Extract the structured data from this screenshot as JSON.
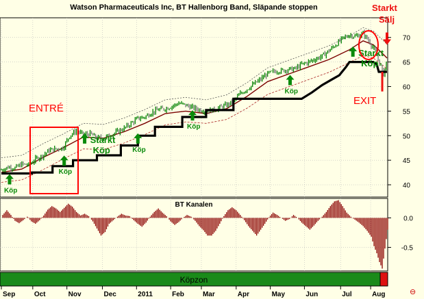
{
  "chart_data": [
    {
      "type": "line",
      "title": "Watson Pharmaceuticals Inc, BT Hallenborg Band, Släpande stoppen",
      "y_ticks": [
        40,
        45,
        50,
        55,
        60,
        65,
        70
      ],
      "ylim": [
        37.5,
        74
      ],
      "x_labels": [
        "Sep",
        "Oct",
        "Nov",
        "Dec",
        "2011",
        "Feb",
        "Mar",
        "Apr",
        "May",
        "Jun",
        "Jul",
        "Aug"
      ],
      "grid": true,
      "series_colors": {
        "price": "#008000",
        "band_mid": "#7a0000",
        "band_outer": "#555555",
        "trailing_stop": "#000000"
      },
      "price": [
        [
          0,
          43.0
        ],
        [
          10,
          43.6
        ],
        [
          20,
          43.4
        ],
        [
          30,
          44.2
        ],
        [
          40,
          44.0
        ],
        [
          50,
          45.2
        ],
        [
          60,
          45.9
        ],
        [
          70,
          47.0
        ],
        [
          80,
          47.3
        ],
        [
          90,
          47.5
        ],
        [
          100,
          50.0
        ],
        [
          110,
          51.0
        ],
        [
          120,
          50.2
        ],
        [
          130,
          50.4
        ],
        [
          140,
          49.5
        ],
        [
          150,
          49.6
        ],
        [
          160,
          50.1
        ],
        [
          170,
          50.8
        ],
        [
          180,
          51.5
        ],
        [
          190,
          52.5
        ],
        [
          200,
          53.5
        ],
        [
          210,
          53.8
        ],
        [
          220,
          54.7
        ],
        [
          230,
          55.3
        ],
        [
          240,
          55.5
        ],
        [
          250,
          56.0
        ],
        [
          260,
          56.6
        ],
        [
          270,
          56.2
        ],
        [
          280,
          55.7
        ],
        [
          290,
          55.3
        ],
        [
          300,
          55.0
        ],
        [
          310,
          55.2
        ],
        [
          320,
          55.7
        ],
        [
          330,
          56.2
        ],
        [
          340,
          57.0
        ],
        [
          350,
          58.5
        ],
        [
          360,
          59.5
        ],
        [
          370,
          60.5
        ],
        [
          380,
          61.5
        ],
        [
          390,
          62.6
        ],
        [
          400,
          63.1
        ],
        [
          410,
          63.2
        ],
        [
          420,
          63.5
        ],
        [
          430,
          63.6
        ],
        [
          440,
          64.5
        ],
        [
          450,
          65.0
        ],
        [
          460,
          65.6
        ],
        [
          470,
          66.2
        ],
        [
          480,
          67.3
        ],
        [
          490,
          68.5
        ],
        [
          500,
          69.8
        ],
        [
          510,
          70.5
        ],
        [
          520,
          70.2
        ],
        [
          530,
          70.8
        ],
        [
          540,
          69.0
        ],
        [
          548,
          67.0
        ],
        [
          555,
          64.5
        ],
        [
          560,
          62.5
        ],
        [
          565,
          65.5
        ]
      ],
      "band_mid": [
        [
          0,
          42.5
        ],
        [
          30,
          43.2
        ],
        [
          60,
          45.5
        ],
        [
          90,
          47.5
        ],
        [
          120,
          49.7
        ],
        [
          150,
          49.5
        ],
        [
          180,
          50.8
        ],
        [
          210,
          52.5
        ],
        [
          240,
          54.5
        ],
        [
          270,
          55.0
        ],
        [
          300,
          54.5
        ],
        [
          330,
          55.5
        ],
        [
          360,
          58.0
        ],
        [
          390,
          61.0
        ],
        [
          420,
          62.5
        ],
        [
          450,
          64.0
        ],
        [
          480,
          65.5
        ],
        [
          510,
          67.5
        ],
        [
          530,
          69.3
        ],
        [
          545,
          68.5
        ],
        [
          560,
          66.5
        ],
        [
          565,
          65.8
        ]
      ],
      "band_upper": [
        [
          0,
          45.5
        ],
        [
          30,
          46.0
        ],
        [
          60,
          48.3
        ],
        [
          90,
          50.3
        ],
        [
          120,
          52.5
        ],
        [
          150,
          52.3
        ],
        [
          180,
          53.6
        ],
        [
          210,
          55.3
        ],
        [
          240,
          57.3
        ],
        [
          270,
          57.8
        ],
        [
          300,
          57.3
        ],
        [
          330,
          58.3
        ],
        [
          360,
          60.8
        ],
        [
          390,
          63.8
        ],
        [
          420,
          65.3
        ],
        [
          450,
          66.8
        ],
        [
          480,
          68.3
        ],
        [
          510,
          70.3
        ],
        [
          530,
          72.0
        ],
        [
          545,
          71.3
        ],
        [
          560,
          69.3
        ],
        [
          565,
          68.6
        ]
      ],
      "band_lower": [
        [
          0,
          40.5
        ],
        [
          30,
          41.0
        ],
        [
          60,
          43.0
        ],
        [
          90,
          45.2
        ],
        [
          120,
          47.3
        ],
        [
          150,
          47.2
        ],
        [
          180,
          48.5
        ],
        [
          210,
          50.2
        ],
        [
          240,
          52.2
        ],
        [
          270,
          52.8
        ],
        [
          300,
          52.5
        ],
        [
          330,
          53.3
        ],
        [
          360,
          55.6
        ],
        [
          390,
          58.4
        ],
        [
          420,
          59.9
        ],
        [
          450,
          61.4
        ],
        [
          480,
          62.9
        ],
        [
          510,
          64.9
        ],
        [
          530,
          66.3
        ],
        [
          545,
          65.8
        ],
        [
          560,
          64.2
        ],
        [
          565,
          63.5
        ]
      ],
      "trailing_stop": [
        [
          0,
          42.3
        ],
        [
          45,
          42.3
        ],
        [
          45,
          42.5
        ],
        [
          75,
          42.5
        ],
        [
          75,
          43.8
        ],
        [
          105,
          43.8
        ],
        [
          105,
          45.0
        ],
        [
          140,
          45.0
        ],
        [
          140,
          46.0
        ],
        [
          175,
          46.0
        ],
        [
          175,
          48.0
        ],
        [
          200,
          48.0
        ],
        [
          200,
          50.0
        ],
        [
          225,
          50.0
        ],
        [
          225,
          51.8
        ],
        [
          265,
          51.8
        ],
        [
          265,
          53.8
        ],
        [
          300,
          53.8
        ],
        [
          300,
          55.2
        ],
        [
          340,
          55.2
        ],
        [
          340,
          57.5
        ],
        [
          440,
          57.5
        ],
        [
          455,
          58.8
        ],
        [
          470,
          60.3
        ],
        [
          485,
          61.5
        ],
        [
          495,
          62.3
        ],
        [
          505,
          64.0
        ],
        [
          510,
          65.0
        ],
        [
          545,
          65.0
        ],
        [
          550,
          64.5
        ],
        [
          553,
          63.0
        ],
        [
          565,
          63.0
        ]
      ],
      "buy_signals": [
        {
          "x": 12,
          "value": 40.5,
          "label": "Köp"
        },
        {
          "x": 92,
          "value": 44.3,
          "label": "Köp"
        },
        {
          "x": 122,
          "value": 48.8,
          "label": "Starkt Köp"
        },
        {
          "x": 200,
          "value": 48.8,
          "label": "Köp"
        },
        {
          "x": 280,
          "value": 53.5,
          "label": "Köp"
        },
        {
          "x": 423,
          "value": 60.7,
          "label": "Köp"
        },
        {
          "x": 515,
          "value": 66.5,
          "label": "Starkt Köp"
        }
      ],
      "sell_signals": [
        {
          "x": 565,
          "value": 68.5,
          "label": "Starkt Sälj"
        }
      ],
      "annotations": [
        {
          "text": "ENTRÉ",
          "color": "#ff0000"
        },
        {
          "text": "EXIT",
          "color": "#ff0000"
        }
      ]
    },
    {
      "type": "bar",
      "title": "BT Kanalen",
      "y_ticks": [
        0.0,
        -0.5
      ],
      "y_tick_labels": [
        "0.0",
        "-0.5"
      ],
      "ylim": [
        -0.9,
        0.33
      ],
      "bar_color": "#8b0000",
      "bars": [
        [
          2,
          0.05
        ],
        [
          8,
          0.13
        ],
        [
          14,
          0.05
        ],
        [
          20,
          -0.05
        ],
        [
          26,
          -0.09
        ],
        [
          32,
          -0.04
        ],
        [
          38,
          0.02
        ],
        [
          44,
          -0.06
        ],
        [
          50,
          -0.1
        ],
        [
          56,
          -0.04
        ],
        [
          62,
          0.04
        ],
        [
          68,
          0.14
        ],
        [
          74,
          0.2
        ],
        [
          80,
          0.16
        ],
        [
          86,
          0.1
        ],
        [
          92,
          0.17
        ],
        [
          98,
          0.24
        ],
        [
          104,
          0.19
        ],
        [
          110,
          0.1
        ],
        [
          116,
          0.04
        ],
        [
          122,
          0.07
        ],
        [
          128,
          0.03
        ],
        [
          134,
          -0.06
        ],
        [
          140,
          -0.18
        ],
        [
          146,
          -0.3
        ],
        [
          152,
          -0.24
        ],
        [
          158,
          -0.1
        ],
        [
          164,
          -0.04
        ],
        [
          170,
          0.02
        ],
        [
          176,
          0.07
        ],
        [
          182,
          0.04
        ],
        [
          188,
          0.03
        ],
        [
          194,
          -0.04
        ],
        [
          200,
          -0.1
        ],
        [
          206,
          -0.15
        ],
        [
          212,
          -0.08
        ],
        [
          218,
          0.02
        ],
        [
          224,
          0.1
        ],
        [
          230,
          0.16
        ],
        [
          236,
          0.09
        ],
        [
          242,
          0.03
        ],
        [
          248,
          -0.06
        ],
        [
          254,
          -0.12
        ],
        [
          260,
          -0.07
        ],
        [
          266,
          0.0
        ],
        [
          272,
          0.05
        ],
        [
          278,
          0.02
        ],
        [
          284,
          -0.05
        ],
        [
          290,
          -0.14
        ],
        [
          296,
          -0.21
        ],
        [
          302,
          -0.3
        ],
        [
          308,
          -0.3
        ],
        [
          314,
          -0.22
        ],
        [
          320,
          -0.1
        ],
        [
          326,
          0.03
        ],
        [
          332,
          0.13
        ],
        [
          338,
          0.18
        ],
        [
          344,
          0.13
        ],
        [
          350,
          0.05
        ],
        [
          356,
          -0.04
        ],
        [
          362,
          -0.14
        ],
        [
          368,
          -0.22
        ],
        [
          374,
          -0.3
        ],
        [
          380,
          -0.2
        ],
        [
          386,
          -0.1
        ],
        [
          392,
          0.01
        ],
        [
          398,
          0.09
        ],
        [
          404,
          0.05
        ],
        [
          410,
          0.0
        ],
        [
          416,
          -0.05
        ],
        [
          422,
          -0.02
        ],
        [
          428,
          0.05
        ],
        [
          434,
          0.0
        ],
        [
          440,
          -0.08
        ],
        [
          446,
          -0.14
        ],
        [
          452,
          -0.2
        ],
        [
          458,
          -0.13
        ],
        [
          464,
          -0.05
        ],
        [
          470,
          0.02
        ],
        [
          476,
          0.1
        ],
        [
          482,
          0.2
        ],
        [
          488,
          0.28
        ],
        [
          494,
          0.3
        ],
        [
          500,
          0.2
        ],
        [
          506,
          0.09
        ],
        [
          512,
          0.02
        ],
        [
          518,
          -0.03
        ],
        [
          524,
          -0.08
        ],
        [
          530,
          -0.14
        ],
        [
          536,
          -0.22
        ],
        [
          542,
          -0.32
        ],
        [
          546,
          -0.48
        ],
        [
          550,
          -0.6
        ],
        [
          554,
          -0.75
        ],
        [
          558,
          -0.86
        ],
        [
          562,
          -0.52
        ],
        [
          566,
          -0.2
        ]
      ]
    },
    {
      "type": "bar",
      "title": "Köpzon",
      "zone_color": "#1a8a1a",
      "sell_zone_color": "#dd1111"
    }
  ],
  "footer_symbol": "⊖"
}
